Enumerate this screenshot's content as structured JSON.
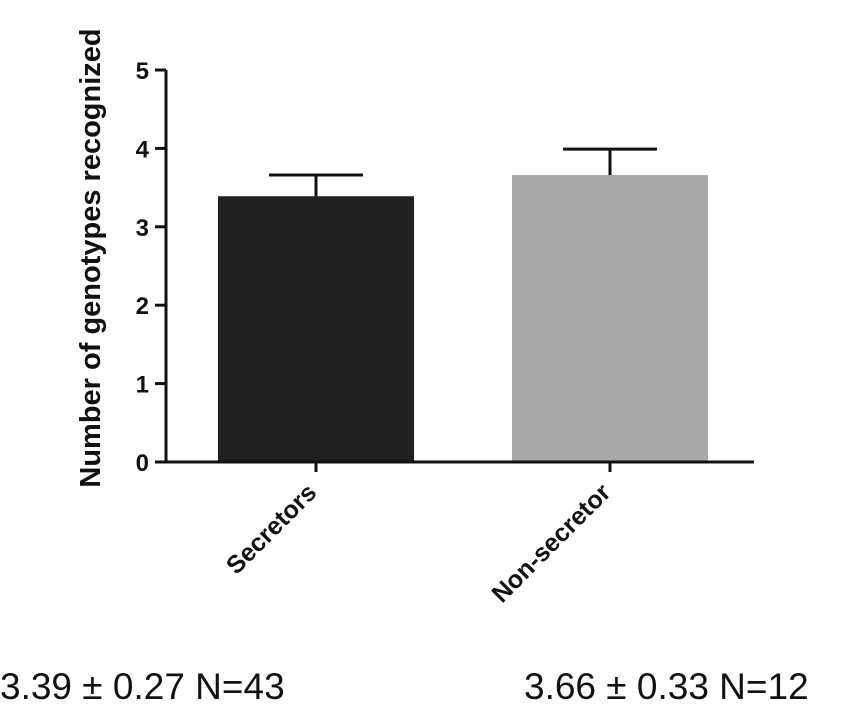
{
  "chart_data": {
    "type": "bar",
    "ylabel": "Number of genotypes recognized",
    "xlabel": "",
    "ylim": [
      0,
      5
    ],
    "yticks": [
      0,
      1,
      2,
      3,
      4,
      5
    ],
    "categories": [
      "Secretors",
      "Non-secretor"
    ],
    "values": [
      3.39,
      3.66
    ],
    "errors": [
      0.27,
      0.33
    ],
    "colors": [
      "#231f20",
      "#a8a9ab"
    ],
    "grid": false
  },
  "annotations": [
    "3.39 ± 0.27 N=43",
    "3.66 ± 0.33 N=12"
  ]
}
